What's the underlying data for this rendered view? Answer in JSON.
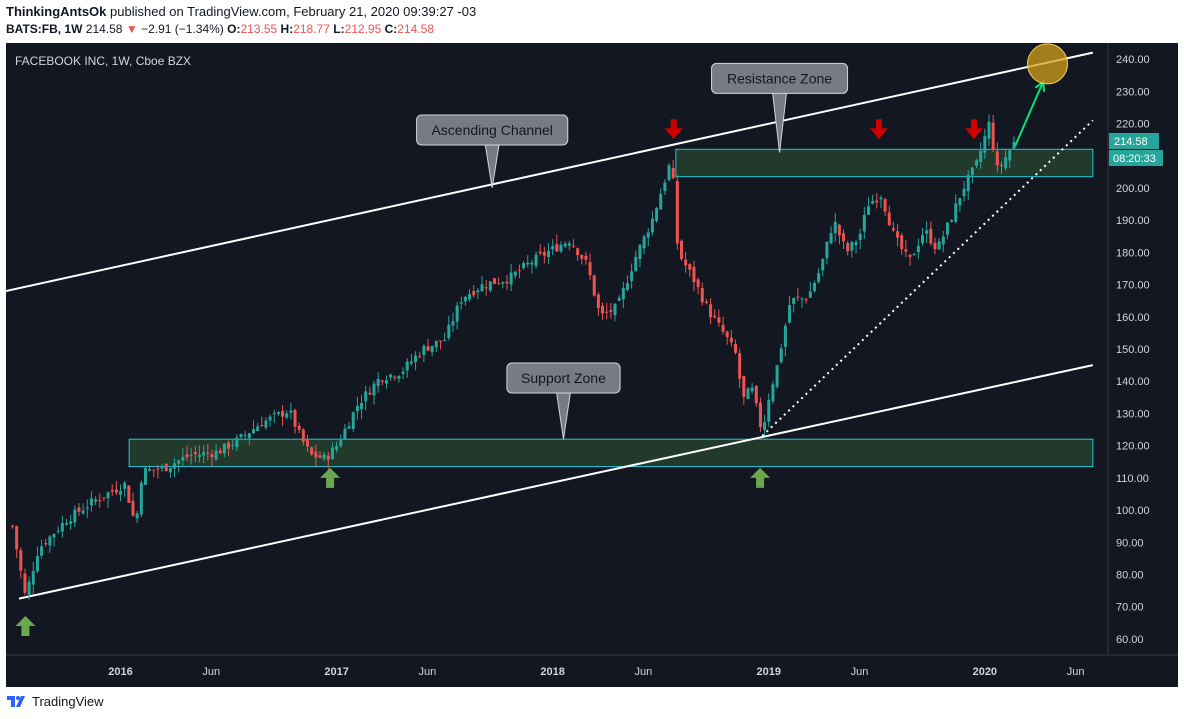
{
  "header": {
    "author": "ThinkingAntsOk",
    "published": "published on TradingView.com, February 21, 2020 09:39:27 -03",
    "symbol": "BATS:FB, 1W",
    "price": "214.58",
    "change_arrow": "▼",
    "change": "−2.91 (−1.34%)",
    "o_label": "O:",
    "o": "213.55",
    "h_label": "H:",
    "h": "218.77",
    "l_label": "L:",
    "l": "212.95",
    "c_label": "C:",
    "c": "214.58"
  },
  "chart_title": "FACEBOOK INC, 1W, Cboe BZX",
  "footer": {
    "brand": "TradingView",
    "logo_icon": "tradingview-logo-icon"
  },
  "colors": {
    "background": "#131722",
    "up": "#26a69a",
    "down": "#ef5350",
    "zone_fill": "#223a2c",
    "zone_border": "#26c6da",
    "arrow_up": "#6aa84f",
    "arrow_down": "#cc0000",
    "highlight": "#d4a017",
    "projection": "#00e676"
  },
  "chart_data": {
    "type": "candlestick",
    "title": "FACEBOOK INC, 1W, Cboe BZX",
    "ylim": [
      55,
      245
    ],
    "y_ticks": [
      60,
      70,
      80,
      90,
      100,
      110,
      120,
      130,
      140,
      150,
      160,
      170,
      180,
      190,
      200,
      210,
      220,
      230,
      240
    ],
    "x_ticks": [
      {
        "t": 2016.0,
        "label": "2016"
      },
      {
        "t": 2016.42,
        "label": "Jun"
      },
      {
        "t": 2017.0,
        "label": "2017"
      },
      {
        "t": 2017.42,
        "label": "Jun"
      },
      {
        "t": 2018.0,
        "label": "2018"
      },
      {
        "t": 2018.42,
        "label": "Jun"
      },
      {
        "t": 2019.0,
        "label": "2019"
      },
      {
        "t": 2019.42,
        "label": "Jun"
      },
      {
        "t": 2020.0,
        "label": "2020"
      },
      {
        "t": 2020.42,
        "label": "Jun"
      }
    ],
    "price_label": "214.58",
    "countdown_label": "08:20:33",
    "path_points": [
      [
        2015.5,
        95
      ],
      [
        2015.56,
        73
      ],
      [
        2015.62,
        88
      ],
      [
        2015.75,
        97
      ],
      [
        2015.88,
        103
      ],
      [
        2016.02,
        108
      ],
      [
        2016.07,
        95
      ],
      [
        2016.1,
        112
      ],
      [
        2016.2,
        113
      ],
      [
        2016.32,
        117
      ],
      [
        2016.45,
        118
      ],
      [
        2016.55,
        122
      ],
      [
        2016.65,
        127
      ],
      [
        2016.78,
        131
      ],
      [
        2016.83,
        123
      ],
      [
        2016.88,
        117
      ],
      [
        2016.95,
        116
      ],
      [
        2017.0,
        120
      ],
      [
        2017.1,
        133
      ],
      [
        2017.2,
        141
      ],
      [
        2017.3,
        143
      ],
      [
        2017.4,
        150
      ],
      [
        2017.5,
        153
      ],
      [
        2017.58,
        166
      ],
      [
        2017.68,
        170
      ],
      [
        2017.8,
        172
      ],
      [
        2017.9,
        177
      ],
      [
        2018.0,
        181
      ],
      [
        2018.08,
        184
      ],
      [
        2018.16,
        176
      ],
      [
        2018.22,
        160
      ],
      [
        2018.3,
        163
      ],
      [
        2018.38,
        178
      ],
      [
        2018.46,
        190
      ],
      [
        2018.55,
        209
      ],
      [
        2018.58,
        180
      ],
      [
        2018.65,
        172
      ],
      [
        2018.72,
        162
      ],
      [
        2018.8,
        154
      ],
      [
        2018.85,
        148
      ],
      [
        2018.88,
        134
      ],
      [
        2018.92,
        138
      ],
      [
        2018.97,
        124
      ],
      [
        2019.0,
        135
      ],
      [
        2019.04,
        145
      ],
      [
        2019.1,
        165
      ],
      [
        2019.18,
        166
      ],
      [
        2019.24,
        175
      ],
      [
        2019.3,
        190
      ],
      [
        2019.36,
        180
      ],
      [
        2019.42,
        185
      ],
      [
        2019.46,
        195
      ],
      [
        2019.52,
        198
      ],
      [
        2019.58,
        185
      ],
      [
        2019.65,
        177
      ],
      [
        2019.72,
        187
      ],
      [
        2019.78,
        181
      ],
      [
        2019.84,
        190
      ],
      [
        2019.9,
        200
      ],
      [
        2019.96,
        207
      ],
      [
        2020.02,
        220
      ],
      [
        2020.06,
        205
      ],
      [
        2020.1,
        210
      ],
      [
        2020.14,
        214.58
      ]
    ],
    "channel_upper": [
      [
        2015.47,
        168
      ],
      [
        2020.5,
        242
      ]
    ],
    "channel_lower": [
      [
        2015.53,
        72.5
      ],
      [
        2020.5,
        145
      ]
    ],
    "trendline_dotted": [
      [
        2018.97,
        123
      ],
      [
        2020.5,
        221
      ]
    ],
    "resistance_zone": {
      "t0": 2018.57,
      "t1": 2020.5,
      "low": 203.5,
      "high": 212
    },
    "support_zone": {
      "t0": 2016.04,
      "t1": 2020.5,
      "low": 113.5,
      "high": 122
    },
    "callouts": [
      {
        "text": "Resistance Zone",
        "t": 2019.05,
        "y": 234,
        "tip_t": 2019.05,
        "tip_y": 211
      },
      {
        "text": "Ascending Channel",
        "t": 2017.72,
        "y": 218,
        "tip_t": 2017.72,
        "tip_y": 200
      },
      {
        "text": "Support Zone",
        "t": 2018.05,
        "y": 141,
        "tip_t": 2018.05,
        "tip_y": 122
      }
    ],
    "down_arrows": [
      2018.56,
      2019.51,
      2019.95
    ],
    "up_arrows": [
      [
        2015.56,
        64
      ],
      [
        2016.97,
        110
      ],
      [
        2018.96,
        110
      ]
    ],
    "highlight_circle": {
      "t": 2020.29,
      "y": 238.5
    },
    "projection_arrow": [
      [
        2020.14,
        213
      ],
      [
        2020.27,
        233
      ]
    ]
  }
}
